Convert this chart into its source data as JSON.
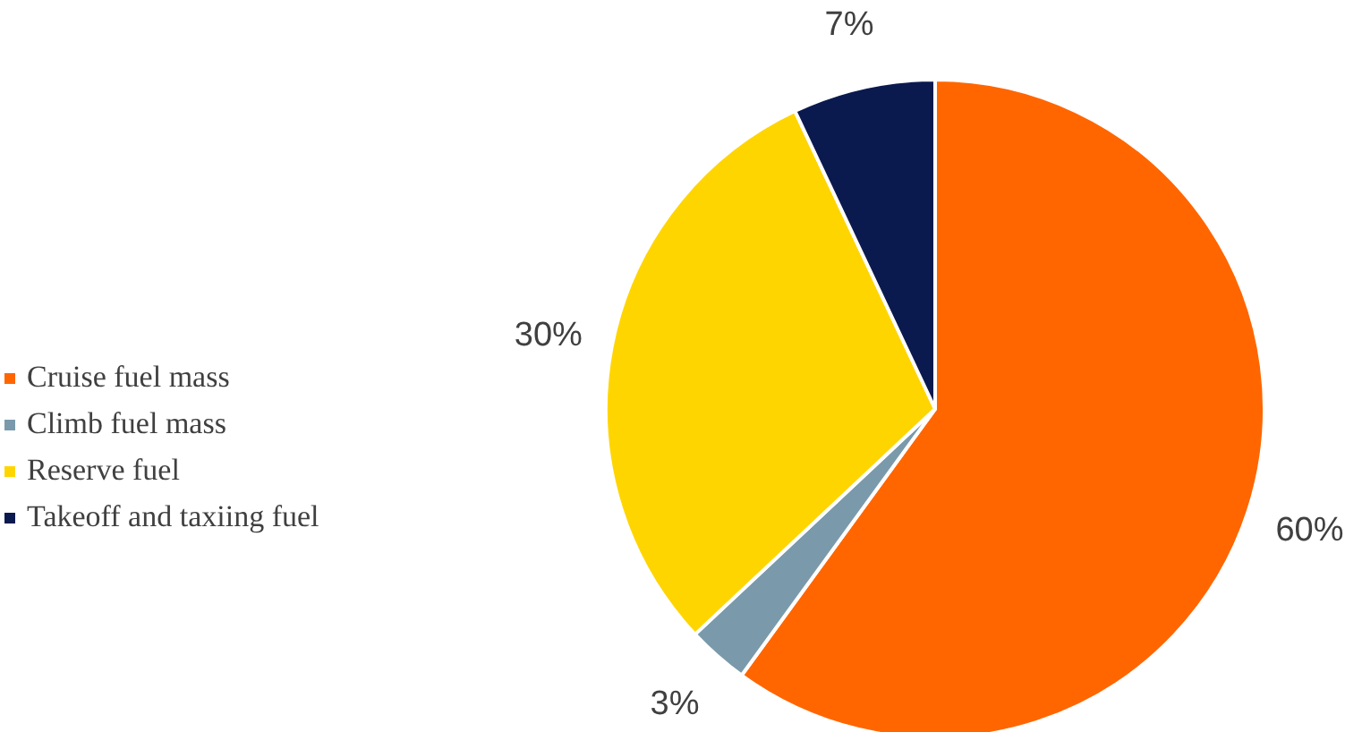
{
  "chart_data": {
    "type": "pie",
    "categories": [
      "Cruise fuel mass",
      "Climb fuel mass",
      "Reserve fuel",
      "Takeoff and taxiing fuel"
    ],
    "values": [
      60,
      3,
      30,
      7
    ],
    "colors": [
      "#ff6600",
      "#7a9aab",
      "#ffd500",
      "#0b1a4e"
    ],
    "value_labels": [
      "60%",
      "3%",
      "30%",
      "7%"
    ],
    "legend": "left"
  }
}
